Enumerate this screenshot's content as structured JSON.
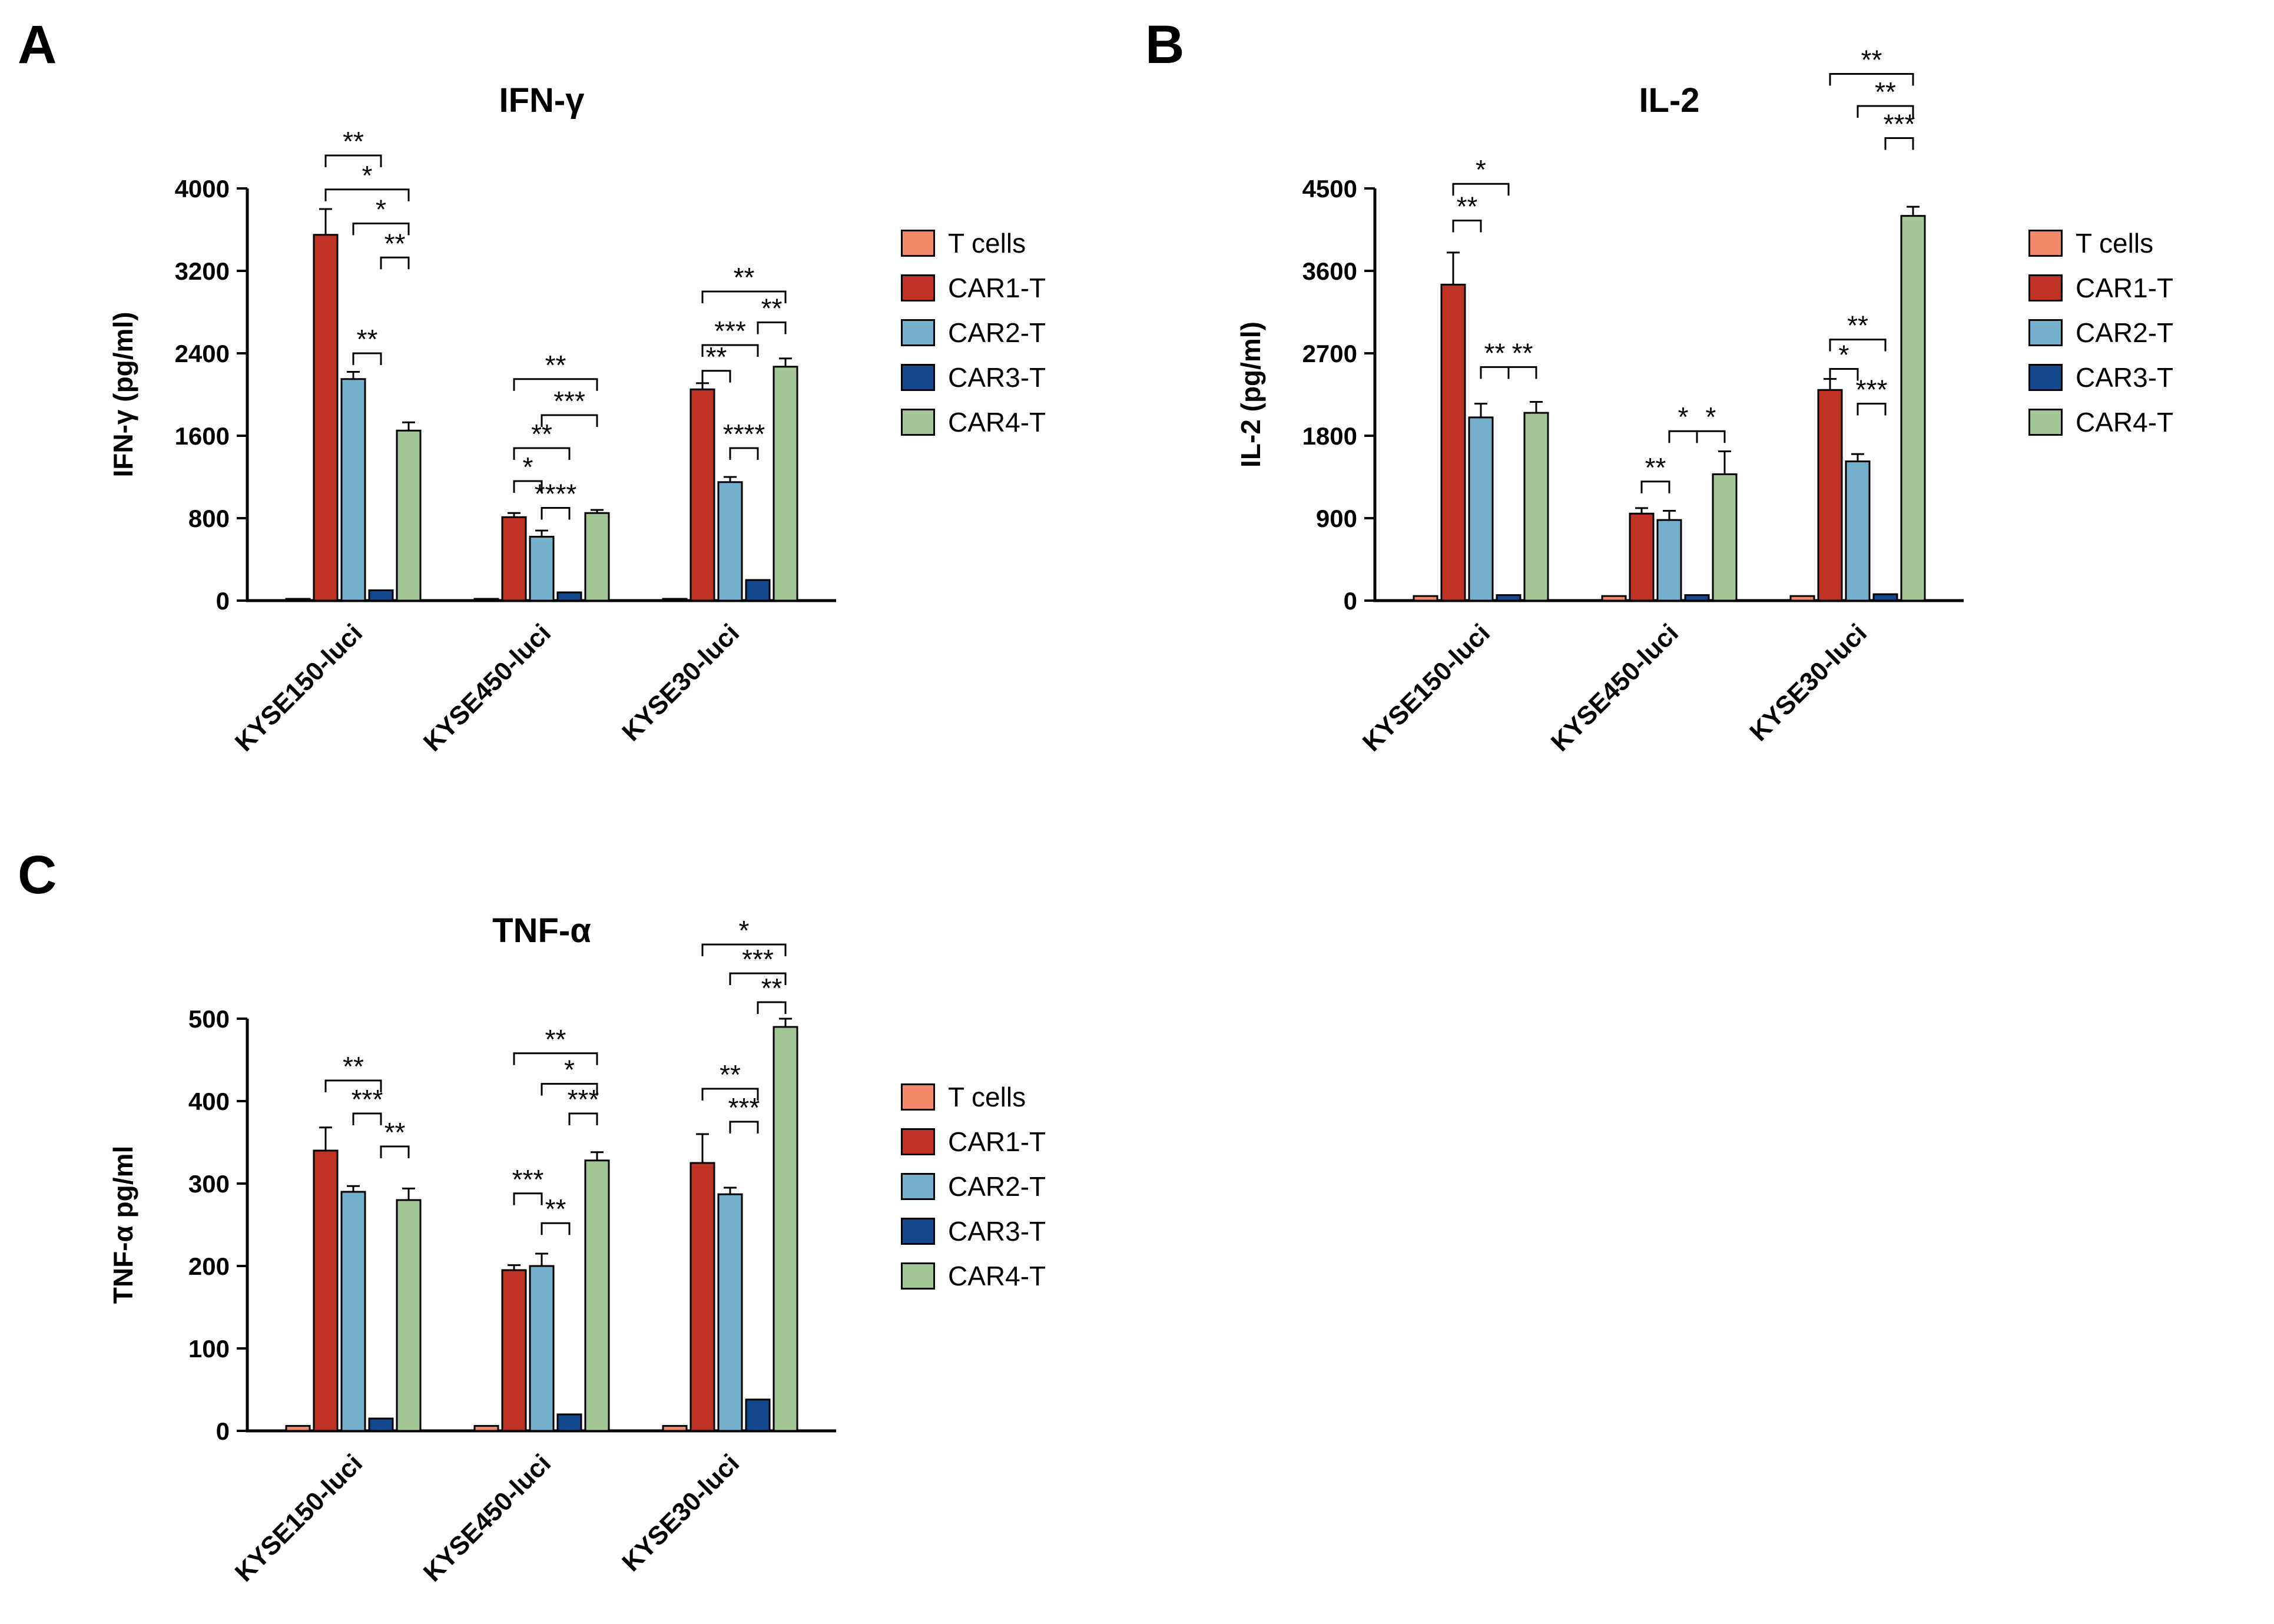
{
  "figure": {
    "background": "#FFFFFF",
    "bar_outline": "#000000",
    "axis_color": "#000000"
  },
  "chart_data": [
    {
      "panel": "A",
      "type": "bar",
      "title": "IFN-γ",
      "ylabel": "IFN-γ (pg/ml)",
      "ylim": [
        0,
        4000
      ],
      "ytick_step": 800,
      "grid": false,
      "legend_position": "right",
      "categories": [
        "KYSE150-luci",
        "KYSE450-luci",
        "KYSE30-luci"
      ],
      "series": [
        {
          "name": "T cells",
          "color": "#F4886B",
          "values": [
            15,
            15,
            15
          ],
          "errors": [
            0,
            0,
            0
          ]
        },
        {
          "name": "CAR1-T",
          "color": "#BF3226",
          "values": [
            3550,
            810,
            2050
          ],
          "errors": [
            250,
            40,
            60
          ]
        },
        {
          "name": "CAR2-T",
          "color": "#74AFCC",
          "values": [
            2150,
            620,
            1150
          ],
          "errors": [
            70,
            60,
            50
          ]
        },
        {
          "name": "CAR3-T",
          "color": "#13498C",
          "values": [
            100,
            80,
            200
          ],
          "errors": [
            0,
            0,
            0
          ]
        },
        {
          "name": "CAR4-T",
          "color": "#A2C795",
          "values": [
            1650,
            850,
            2270
          ],
          "errors": [
            80,
            30,
            80
          ]
        }
      ],
      "significance": [
        {
          "group": 0,
          "from": 1,
          "to": 3,
          "label": "**",
          "y": 4320
        },
        {
          "group": 0,
          "from": 1,
          "to": 4,
          "label": "*",
          "y": 3990
        },
        {
          "group": 0,
          "from": 2,
          "to": 4,
          "label": "*",
          "y": 3660
        },
        {
          "group": 0,
          "from": 3,
          "to": 4,
          "label": "**",
          "y": 3330
        },
        {
          "group": 0,
          "from": 2,
          "to": 3,
          "label": "**",
          "y": 2400
        },
        {
          "group": 1,
          "from": 1,
          "to": 4,
          "label": "**",
          "y": 2150
        },
        {
          "group": 1,
          "from": 2,
          "to": 4,
          "label": "***",
          "y": 1800
        },
        {
          "group": 1,
          "from": 1,
          "to": 3,
          "label": "**",
          "y": 1480
        },
        {
          "group": 1,
          "from": 1,
          "to": 2,
          "label": "*",
          "y": 1160
        },
        {
          "group": 1,
          "from": 2,
          "to": 3,
          "label": "****",
          "y": 900
        },
        {
          "group": 2,
          "from": 1,
          "to": 4,
          "label": "**",
          "y": 3000
        },
        {
          "group": 2,
          "from": 3,
          "to": 4,
          "label": "**",
          "y": 2700
        },
        {
          "group": 2,
          "from": 1,
          "to": 3,
          "label": "***",
          "y": 2480
        },
        {
          "group": 2,
          "from": 1,
          "to": 2,
          "label": "**",
          "y": 2230
        },
        {
          "group": 2,
          "from": 2,
          "to": 3,
          "label": "****",
          "y": 1480
        }
      ]
    },
    {
      "panel": "B",
      "type": "bar",
      "title": "IL-2",
      "ylabel": "IL-2 (pg/ml)",
      "ylim": [
        0,
        4500
      ],
      "ytick_step": 900,
      "grid": false,
      "legend_position": "right",
      "categories": [
        "KYSE150-luci",
        "KYSE450-luci",
        "KYSE30-luci"
      ],
      "series": [
        {
          "name": "T cells",
          "color": "#F4886B",
          "values": [
            50,
            50,
            50
          ],
          "errors": [
            0,
            0,
            0
          ]
        },
        {
          "name": "CAR1-T",
          "color": "#BF3226",
          "values": [
            3450,
            950,
            2300
          ],
          "errors": [
            350,
            60,
            120
          ]
        },
        {
          "name": "CAR2-T",
          "color": "#74AFCC",
          "values": [
            2000,
            880,
            1520
          ],
          "errors": [
            150,
            100,
            80
          ]
        },
        {
          "name": "CAR3-T",
          "color": "#13498C",
          "values": [
            60,
            60,
            70
          ],
          "errors": [
            0,
            0,
            0
          ]
        },
        {
          "name": "CAR4-T",
          "color": "#A2C795",
          "values": [
            2050,
            1380,
            4200
          ],
          "errors": [
            120,
            250,
            100
          ]
        }
      ],
      "significance": [
        {
          "group": 0,
          "from": 1,
          "to": 3,
          "label": "*",
          "y": 4550
        },
        {
          "group": 0,
          "from": 1,
          "to": 2,
          "label": "**",
          "y": 4150
        },
        {
          "group": 0,
          "from": 2,
          "to": 3,
          "label": "**",
          "y": 2550
        },
        {
          "group": 0,
          "from": 3,
          "to": 4,
          "label": "**",
          "y": 2550
        },
        {
          "group": 1,
          "from": 2,
          "to": 3,
          "label": "*",
          "y": 1850
        },
        {
          "group": 1,
          "from": 3,
          "to": 4,
          "label": "*",
          "y": 1850
        },
        {
          "group": 1,
          "from": 1,
          "to": 2,
          "label": "**",
          "y": 1300
        },
        {
          "group": 2,
          "from": 1,
          "to": 4,
          "label": "**",
          "y": 5750
        },
        {
          "group": 2,
          "from": 2,
          "to": 4,
          "label": "**",
          "y": 5400
        },
        {
          "group": 2,
          "from": 3,
          "to": 4,
          "label": "***",
          "y": 5050
        },
        {
          "group": 2,
          "from": 1,
          "to": 3,
          "label": "**",
          "y": 2850
        },
        {
          "group": 2,
          "from": 1,
          "to": 2,
          "label": "*",
          "y": 2530
        },
        {
          "group": 2,
          "from": 2,
          "to": 3,
          "label": "***",
          "y": 2150
        }
      ]
    },
    {
      "panel": "C",
      "type": "bar",
      "title": "TNF-α",
      "ylabel": "TNF-α pg/ml",
      "ylim": [
        0,
        500
      ],
      "ytick_step": 100,
      "grid": false,
      "legend_position": "right",
      "categories": [
        "KYSE150-luci",
        "KYSE450-luci",
        "KYSE30-luci"
      ],
      "series": [
        {
          "name": "T cells",
          "color": "#F4886B",
          "values": [
            6,
            6,
            6
          ],
          "errors": [
            0,
            0,
            0
          ]
        },
        {
          "name": "CAR1-T",
          "color": "#BF3226",
          "values": [
            340,
            195,
            325
          ],
          "errors": [
            28,
            6,
            35
          ]
        },
        {
          "name": "CAR2-T",
          "color": "#74AFCC",
          "values": [
            290,
            200,
            287
          ],
          "errors": [
            7,
            15,
            8
          ]
        },
        {
          "name": "CAR3-T",
          "color": "#13498C",
          "values": [
            15,
            20,
            38
          ],
          "errors": [
            0,
            0,
            0
          ]
        },
        {
          "name": "CAR4-T",
          "color": "#A2C795",
          "values": [
            280,
            328,
            490
          ],
          "errors": [
            14,
            10,
            10
          ]
        }
      ],
      "significance": [
        {
          "group": 0,
          "from": 1,
          "to": 3,
          "label": "**",
          "y": 425
        },
        {
          "group": 0,
          "from": 2,
          "to": 3,
          "label": "***",
          "y": 385
        },
        {
          "group": 0,
          "from": 3,
          "to": 4,
          "label": "**",
          "y": 345
        },
        {
          "group": 1,
          "from": 1,
          "to": 4,
          "label": "**",
          "y": 458
        },
        {
          "group": 1,
          "from": 2,
          "to": 4,
          "label": "*",
          "y": 421
        },
        {
          "group": 1,
          "from": 3,
          "to": 4,
          "label": "***",
          "y": 385
        },
        {
          "group": 1,
          "from": 1,
          "to": 2,
          "label": "***",
          "y": 288
        },
        {
          "group": 1,
          "from": 2,
          "to": 3,
          "label": "**",
          "y": 252
        },
        {
          "group": 2,
          "from": 1,
          "to": 4,
          "label": "*",
          "y": 590
        },
        {
          "group": 2,
          "from": 2,
          "to": 4,
          "label": "***",
          "y": 555
        },
        {
          "group": 2,
          "from": 3,
          "to": 4,
          "label": "**",
          "y": 520
        },
        {
          "group": 2,
          "from": 1,
          "to": 3,
          "label": "**",
          "y": 415
        },
        {
          "group": 2,
          "from": 2,
          "to": 3,
          "label": "***",
          "y": 375
        }
      ]
    }
  ]
}
